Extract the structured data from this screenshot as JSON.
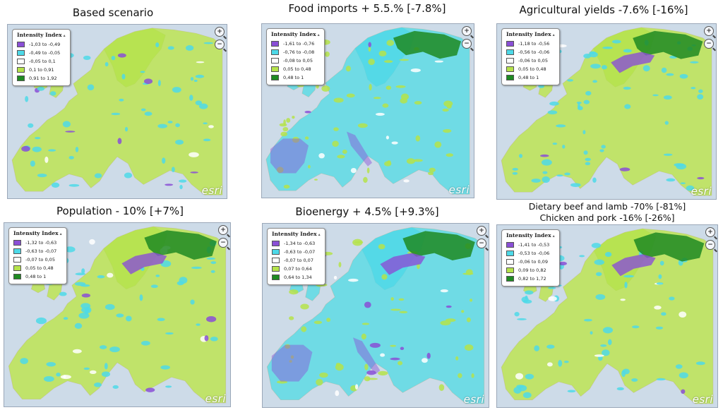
{
  "legend_colors": [
    "#8a4fd6",
    "#4dd9e8",
    "#ffffff",
    "#b5e34a",
    "#1f8a22"
  ],
  "panels": [
    {
      "id": "based",
      "title": "Based scenario",
      "legend_title": "Intensity Index",
      "legend": [
        "-1,03 to -0,49",
        "-0,49 to -0,05",
        "-0,05 to 0,1",
        "0,1 to 0,91",
        "0,91 to 1,92"
      ],
      "dominant": "green",
      "esri": "esri",
      "zoom_icons": [
        "zoom-in-icon",
        "zoom-out-icon"
      ]
    },
    {
      "id": "food",
      "title": "Food imports + 5.5.% [-7.8%]",
      "legend_title": "Intensity Index",
      "legend": [
        "-1,61 to -0,76",
        "-0,76 to -0,08",
        "-0,08 to 0,05",
        "0,05 to 0,48",
        "0,48 to 1"
      ],
      "dominant": "cyan",
      "esri": "esri",
      "zoom_icons": [
        "zoom-in-icon",
        "zoom-out-icon"
      ]
    },
    {
      "id": "agri",
      "title": "Agricultural yields -7.6% [-16%]",
      "legend_title": "Intensity Index",
      "legend": [
        "-1,18 to -0,56",
        "-0,56 to -0,06",
        "-0,06 to 0,05",
        "0,05 to 0,48",
        "0,48 to 1"
      ],
      "dominant": "green",
      "esri": "esri",
      "zoom_icons": [
        "zoom-in-icon",
        "zoom-out-icon"
      ]
    },
    {
      "id": "pop",
      "title": "Population - 10% [+7%]",
      "legend_title": "Intensity Index",
      "legend": [
        "-1,32 to -0,63",
        "-0,63 to -0,07",
        "-0,07 to 0,05",
        "0,05 to 0,48",
        "0,48 to 1"
      ],
      "dominant": "green",
      "esri": "esri",
      "zoom_icons": [
        "zoom-in-icon",
        "zoom-out-icon"
      ]
    },
    {
      "id": "bio",
      "title": "Bioenergy + 4.5% [+9.3%]",
      "legend_title": "Intensity Index",
      "legend": [
        "-1,34 to -0,63",
        "-0,63 to -0,07",
        "-0,07 to 0,07",
        "0,07 to 0,64",
        "0,64 to 1,34"
      ],
      "dominant": "cyan",
      "esri": "esri",
      "zoom_icons": [
        "zoom-in-icon",
        "zoom-out-icon"
      ]
    },
    {
      "id": "diet",
      "title_lines": [
        "Dietary beef and lamb -70% [-81%]",
        "Chicken and pork -16% [-26%]"
      ],
      "legend_title": "Intensity Index",
      "legend": [
        "-1,41 to -0,53",
        "-0,53 to -0,06",
        "-0,06 to 0,09",
        "0,09 to 0,82",
        "0,82 to 1,72"
      ],
      "dominant": "green",
      "esri": "esri",
      "zoom_icons": [
        "zoom-in-icon",
        "zoom-out-icon"
      ]
    }
  ]
}
